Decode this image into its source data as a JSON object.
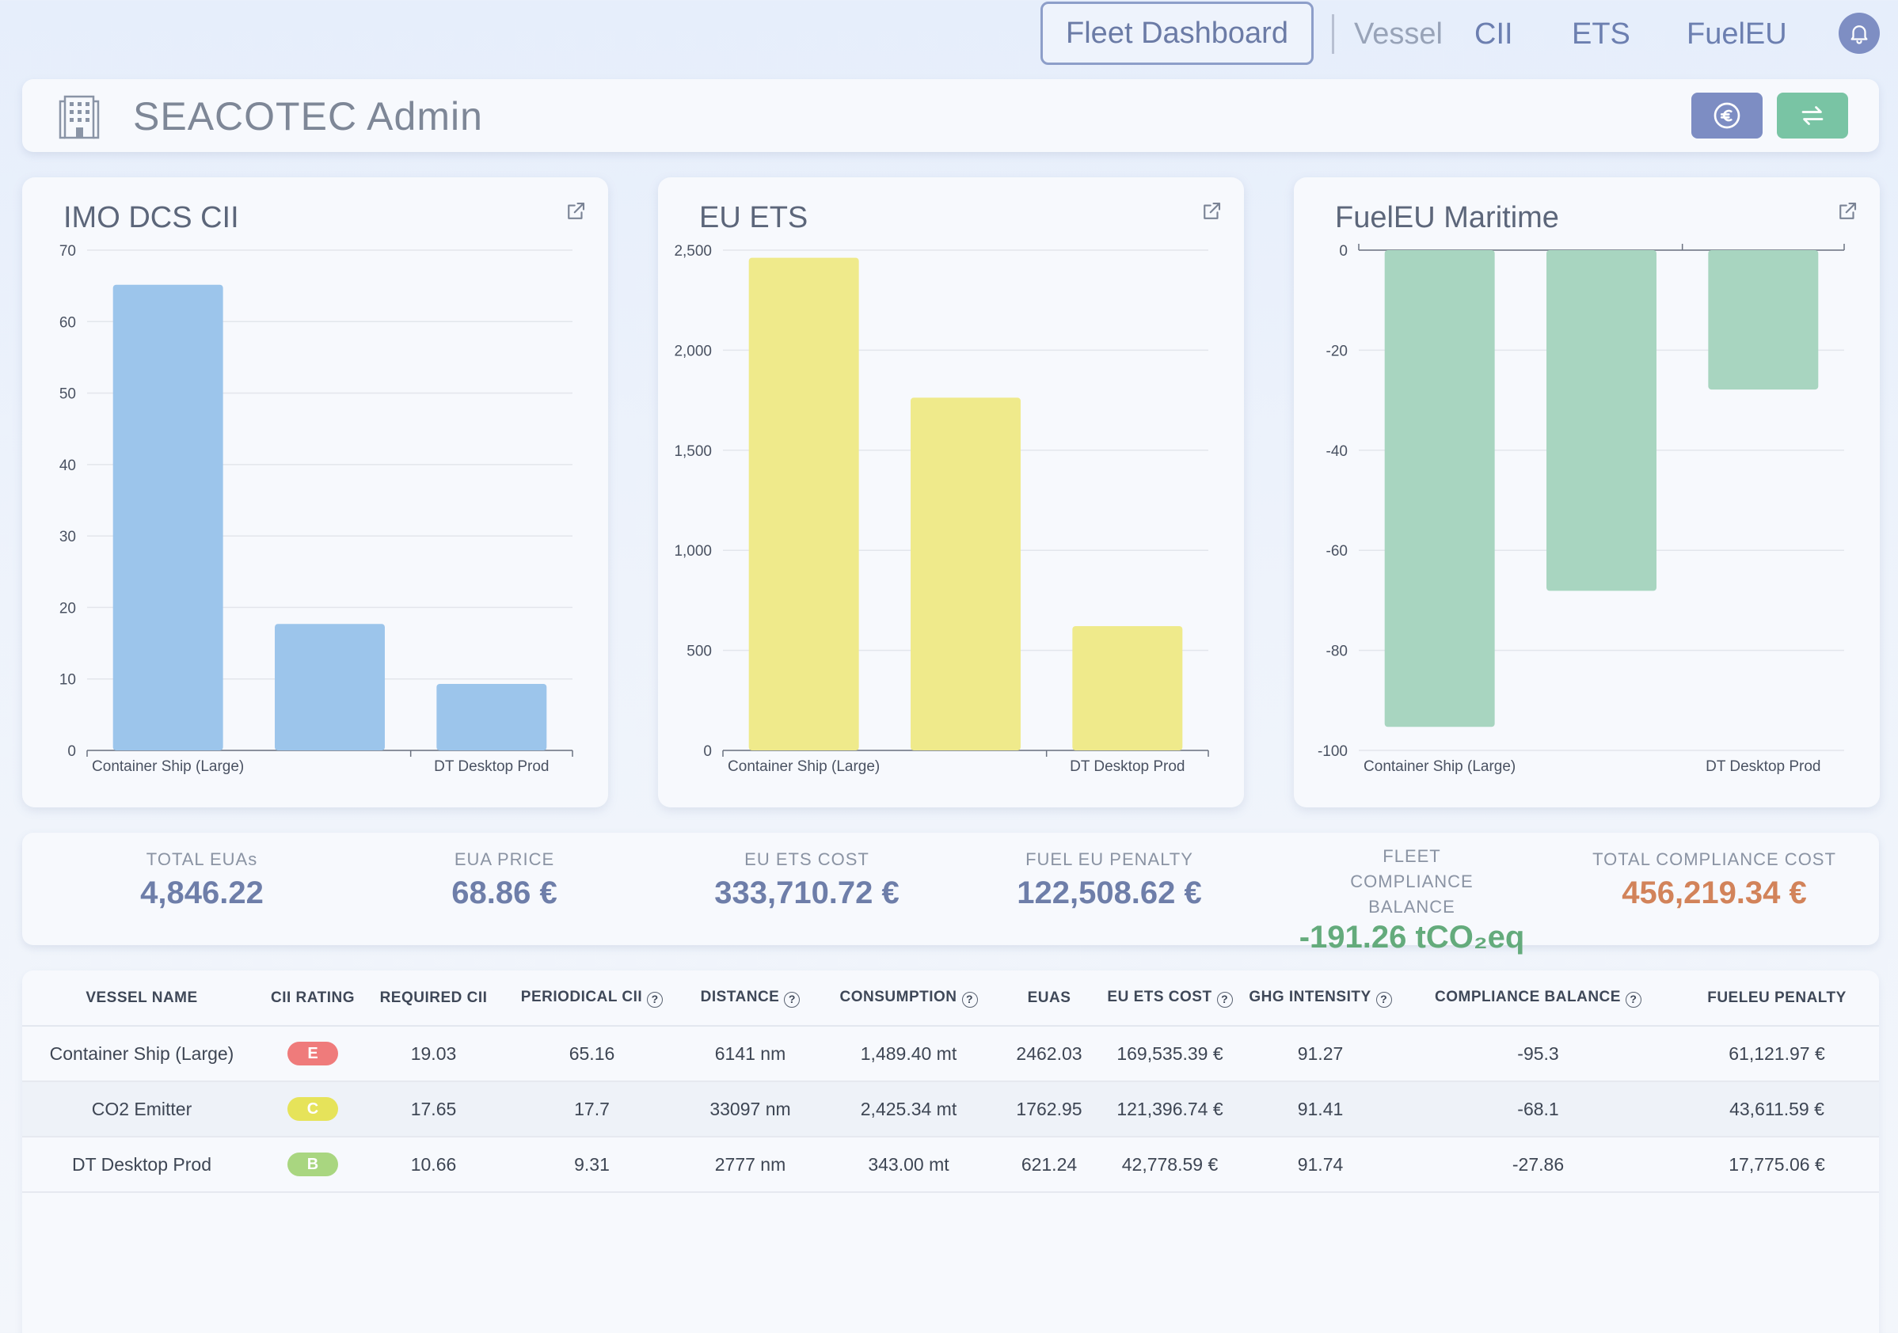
{
  "nav": {
    "fleet_dashboard": "Fleet Dashboard",
    "vessel": "Vessel",
    "cii": "CII",
    "ets": "ETS",
    "fueleu": "FuelEU"
  },
  "header": {
    "title": "SEACOTEC Admin"
  },
  "charts": [
    {
      "title": "IMO DCS CII",
      "chart_data": {
        "type": "bar",
        "categories": [
          "Container Ship (Large)",
          "CO2 Emitter",
          "DT Desktop Prod"
        ],
        "visible_category_labels": [
          "Container Ship (Large)",
          "DT Desktop Prod"
        ],
        "values": [
          65.16,
          17.7,
          9.31
        ],
        "ylim": [
          0,
          70
        ],
        "yticks": [
          "0",
          "10",
          "20",
          "30",
          "40",
          "50",
          "60",
          "70"
        ],
        "color": "#9cc5eb"
      }
    },
    {
      "title": "EU ETS",
      "chart_data": {
        "type": "bar",
        "categories": [
          "Container Ship (Large)",
          "CO2 Emitter",
          "DT Desktop Prod"
        ],
        "visible_category_labels": [
          "Container Ship (Large)",
          "DT Desktop Prod"
        ],
        "values": [
          2462.03,
          1762.95,
          621.24
        ],
        "ylim": [
          0,
          2500
        ],
        "yticks": [
          "0",
          "500",
          "1,000",
          "1,500",
          "2,000",
          "2,500"
        ],
        "color": "#efea8b"
      }
    },
    {
      "title": "FuelEU Maritime",
      "chart_data": {
        "type": "bar",
        "categories": [
          "Container Ship (Large)",
          "CO2 Emitter",
          "DT Desktop Prod"
        ],
        "visible_category_labels": [
          "Container Ship (Large)",
          "DT Desktop Prod"
        ],
        "values": [
          -95.3,
          -68.1,
          -27.86
        ],
        "ylim": [
          -100,
          0
        ],
        "yticks": [
          "-100",
          "-80",
          "-60",
          "-40",
          "-20",
          "0"
        ],
        "color": "#a8d5c0"
      }
    }
  ],
  "stats": {
    "total_euas": {
      "label": "TOTAL EUAs",
      "value": "4,846.22"
    },
    "eua_price": {
      "label": "EUA PRICE",
      "value": "68.86 €"
    },
    "eu_ets_cost": {
      "label": "EU ETS COST",
      "value": "333,710.72 €"
    },
    "fuel_eu_penalty": {
      "label": "FUEL EU PENALTY",
      "value": "122,508.62 €"
    },
    "fleet_compliance_balance": {
      "label": "FLEET COMPLIANCE BALANCE",
      "value": "-191.26 tCO₂eq"
    },
    "total_compliance_cost": {
      "label": "TOTAL COMPLIANCE COST",
      "value": "456,219.34 €"
    }
  },
  "colors": {
    "rating_E": "#ef7b7b",
    "rating_C": "#e6e35a",
    "rating_B": "#a9d680"
  },
  "table": {
    "headers": [
      {
        "label": "VESSEL NAME",
        "help": false
      },
      {
        "label": "CII RATING",
        "help": false
      },
      {
        "label": "REQUIRED CII",
        "help": false
      },
      {
        "label": "PERIODICAL CII",
        "help": true
      },
      {
        "label": "DISTANCE",
        "help": true
      },
      {
        "label": "CONSUMPTION",
        "help": true
      },
      {
        "label": "EUAS",
        "help": false
      },
      {
        "label": "EU ETS COST",
        "help": true
      },
      {
        "label": "GHG INTENSITY",
        "help": true
      },
      {
        "label": "COMPLIANCE BALANCE",
        "help": true
      },
      {
        "label": "FUELEU PENALTY",
        "help": false
      }
    ],
    "rows": [
      {
        "vessel": "Container Ship (Large)",
        "rating": "E",
        "required_cii": "19.03",
        "periodical_cii": "65.16",
        "distance": "6141 nm",
        "consumption": "1,489.40 mt",
        "euas": "2462.03",
        "ets_cost": "169,535.39 €",
        "ghg": "91.27",
        "balance": "-95.3",
        "penalty": "61,121.97 €"
      },
      {
        "vessel": "CO2 Emitter",
        "rating": "C",
        "required_cii": "17.65",
        "periodical_cii": "17.7",
        "distance": "33097 nm",
        "consumption": "2,425.34 mt",
        "euas": "1762.95",
        "ets_cost": "121,396.74 €",
        "ghg": "91.41",
        "balance": "-68.1",
        "penalty": "43,611.59 €"
      },
      {
        "vessel": "DT Desktop Prod",
        "rating": "B",
        "required_cii": "10.66",
        "periodical_cii": "9.31",
        "distance": "2777 nm",
        "consumption": "343.00 mt",
        "euas": "621.24",
        "ets_cost": "42,778.59 €",
        "ghg": "91.74",
        "balance": "-27.86",
        "penalty": "17,775.06 €"
      }
    ]
  }
}
